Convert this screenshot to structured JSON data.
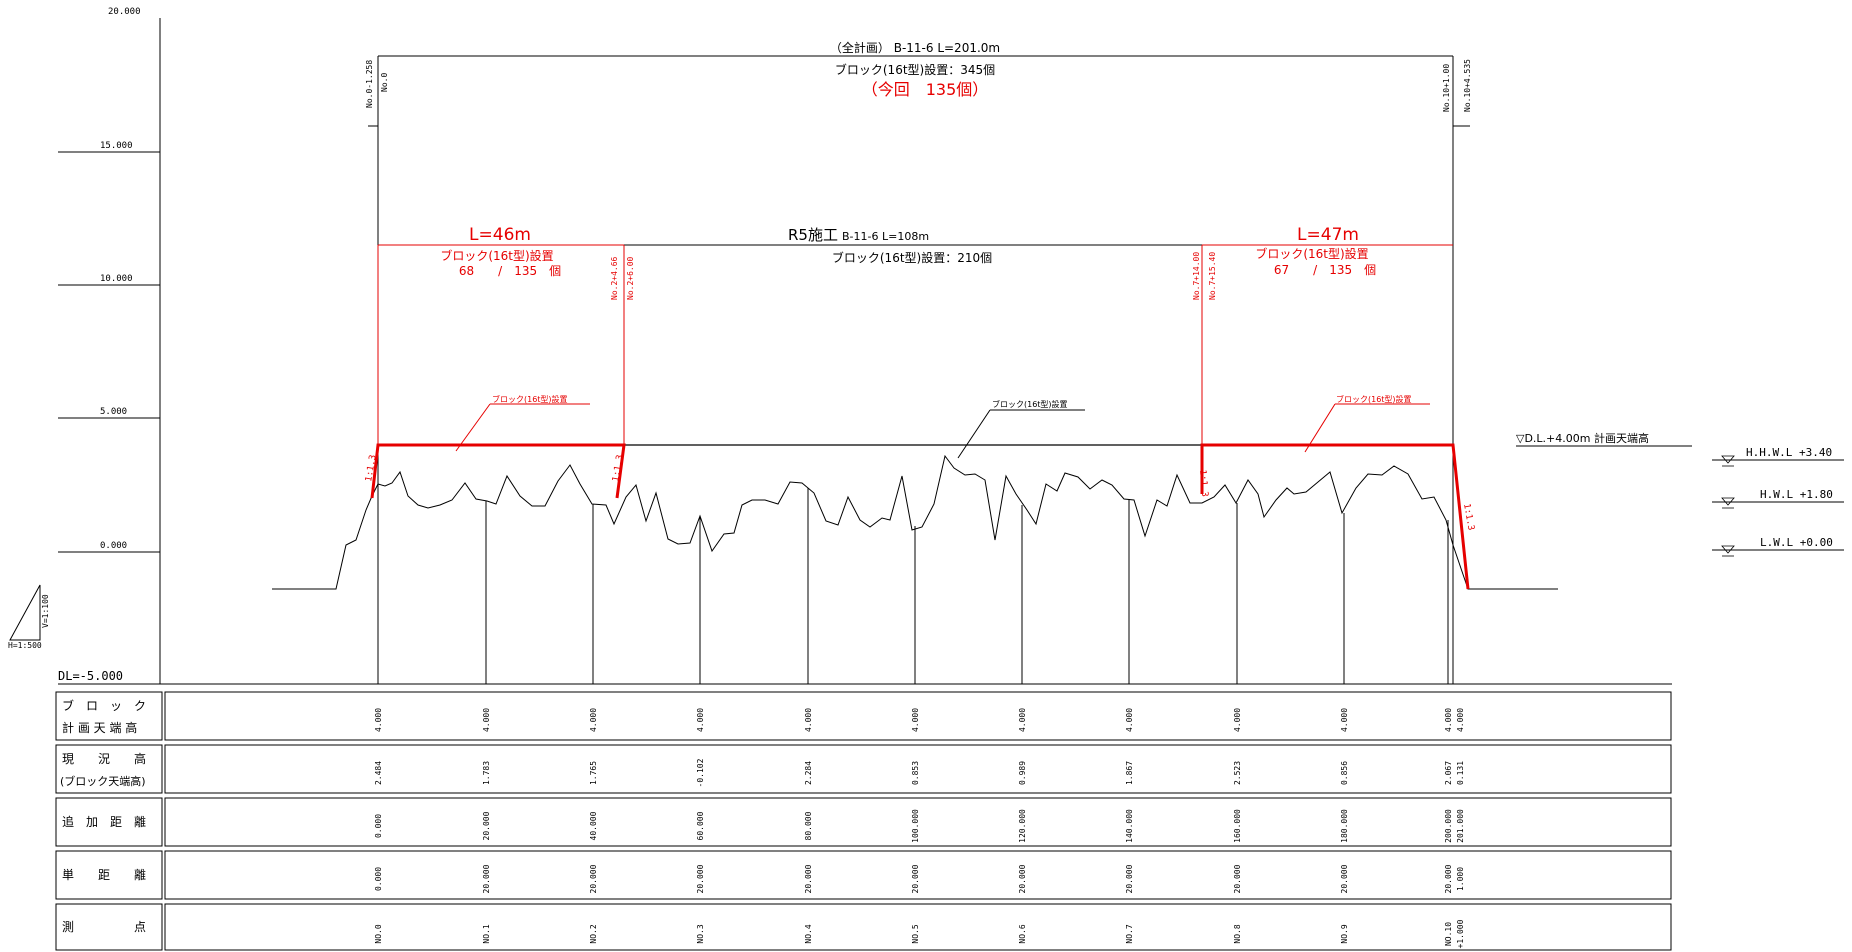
{
  "y_axis": {
    "labels": [
      "20.000",
      "15.000",
      "10.000",
      "5.000",
      "0.000"
    ],
    "datum_label": "DL=-5.000"
  },
  "scale": {
    "vertical": "V=1:100",
    "horizontal": "H=1:500"
  },
  "overall": {
    "title": "（全計画） B-11-6 L=201.0m",
    "blocks": "ブロック(16t型)設置：345個",
    "current": "（今回　135個）"
  },
  "r5": {
    "title": "R5施工",
    "length": "B-11-6 L=108m",
    "blocks": "ブロック(16t型)設置：210個"
  },
  "left_section": {
    "length": "L=46m",
    "blocks": "ブロック(16t型)設置",
    "count": "68　　/　135　個"
  },
  "right_section": {
    "length": "L=47m",
    "blocks": "ブロック(16t型)設置",
    "count": "67　　/　135　個"
  },
  "station_labels": {
    "no0_minus": "No.0-1.258",
    "no0": "No.0",
    "no2a": "No.2+4.66",
    "no2b": "No.2+6.00",
    "no7a": "No.7+14.00",
    "no7b": "No.7+15.40",
    "no10a": "No.10+1.00",
    "no10b": "No.10+4.535"
  },
  "callouts": {
    "left": "ブロック(16t型)設置",
    "mid": "ブロック(16t型)設置",
    "right": "ブロック(16t型)設置"
  },
  "slopes": {
    "s1": "1:1.3",
    "s2": "1:1.3",
    "s3": "1:1.3",
    "s4": "1:1.3"
  },
  "water_levels": {
    "crown": "▽D.L.+4.00m 計画天端高",
    "hhwl": "H.H.W.L +3.40",
    "hwl": "H.W.L +1.80",
    "lwl": "L.W.L +0.00"
  },
  "table": {
    "row_labels": [
      [
        "ブ　ロ　ッ　ク",
        "計 画 天 端 高"
      ],
      [
        "現　　況　　高",
        "(ブロック天端高)"
      ],
      [
        "追　加　距　離"
      ],
      [
        "単　　距　　離"
      ],
      [
        "測　　　　　点"
      ]
    ],
    "plan_height": [
      "4.000",
      "4.000",
      "4.000",
      "4.000",
      "4.000",
      "4.000",
      "4.000",
      "4.000",
      "4.000",
      "4.000",
      "4.000",
      "4.000"
    ],
    "ground_height": [
      "2.484",
      "1.783",
      "1.765",
      "-0.102",
      "2.284",
      "0.853",
      "0.989",
      "1.867",
      "2.523",
      "0.856",
      "2.067",
      "0.131"
    ],
    "cumulative_distance": [
      "0.000",
      "20.000",
      "40.000",
      "60.000",
      "80.000",
      "100.000",
      "120.000",
      "140.000",
      "160.000",
      "180.000",
      "200.000",
      "201.000"
    ],
    "single_distance": [
      "0.000",
      "20.000",
      "20.000",
      "20.000",
      "20.000",
      "20.000",
      "20.000",
      "20.000",
      "20.000",
      "20.000",
      "20.000",
      "1.000"
    ],
    "station": [
      "NO.0",
      "NO.1",
      "NO.2",
      "NO.3",
      "NO.4",
      "NO.5",
      "NO.6",
      "NO.7",
      "NO.8",
      "NO.9",
      "NO.10",
      "+1.000"
    ]
  },
  "chart_data": {
    "type": "line",
    "title": "",
    "x_label": "",
    "y_label": "",
    "y_range": [
      -5,
      20
    ],
    "series": [
      {
        "kind": "ground",
        "x": [
          0,
          20,
          40,
          60,
          80,
          100,
          120,
          140,
          160,
          180,
          200,
          201
        ],
        "y": [
          2.484,
          1.783,
          1.765,
          -0.102,
          2.284,
          0.853,
          0.989,
          1.867,
          2.523,
          0.856,
          2.067,
          0.131
        ]
      },
      {
        "kind": "plan",
        "x": [
          0,
          201
        ],
        "y": [
          4.0,
          4.0
        ]
      }
    ],
    "colors": {
      "plan_current": "#e60000",
      "plan_other": "#000000",
      "ground": "#000000"
    }
  }
}
